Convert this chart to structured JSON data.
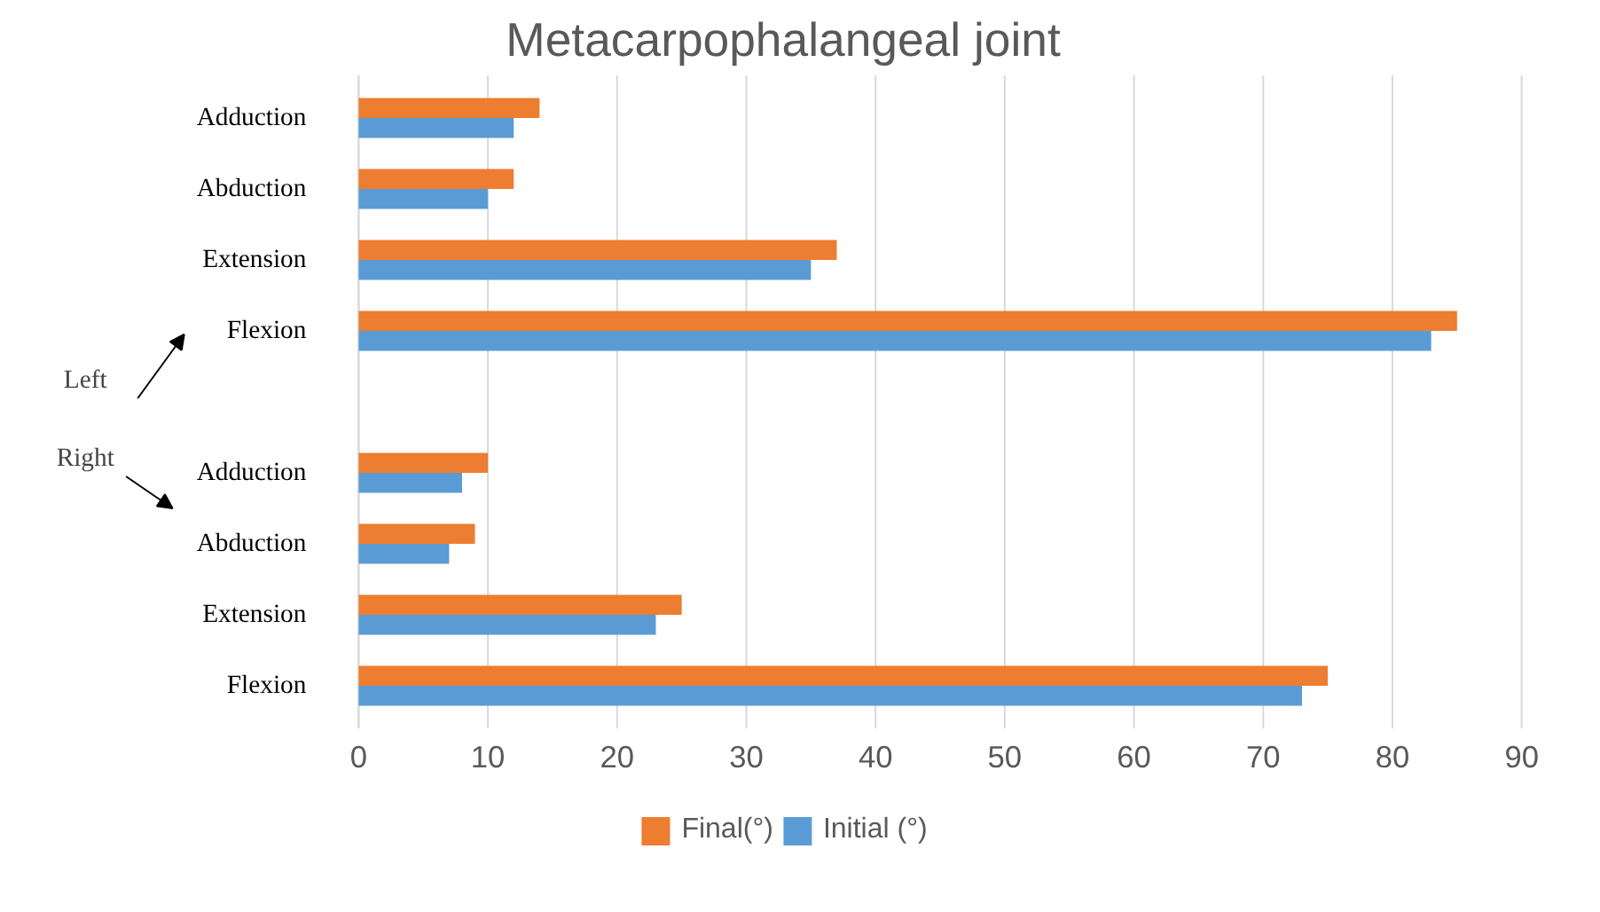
{
  "chart_data": {
    "type": "bar",
    "orientation": "horizontal",
    "title": "Metacarpophalangeal joint",
    "categories": [
      "Adduction",
      "Abduction",
      "Extension",
      "Flexion",
      null,
      "Adduction",
      "Abduction",
      "Extension",
      "Flexion"
    ],
    "series": [
      {
        "name": "Final(°)",
        "color": "#ed7d31",
        "values": [
          14,
          12,
          37,
          85,
          null,
          10,
          9,
          25,
          75
        ]
      },
      {
        "name": "Initial (°)",
        "color": "#5b9bd5",
        "values": [
          12,
          10,
          35,
          83,
          null,
          8,
          7,
          23,
          73
        ]
      }
    ],
    "xlim": [
      0,
      90
    ],
    "xticks": [
      0,
      10,
      20,
      30,
      40,
      50,
      60,
      70,
      80,
      90
    ],
    "grid": "x",
    "legend": "bottom",
    "annotations": [
      "Left",
      "Right"
    ]
  }
}
